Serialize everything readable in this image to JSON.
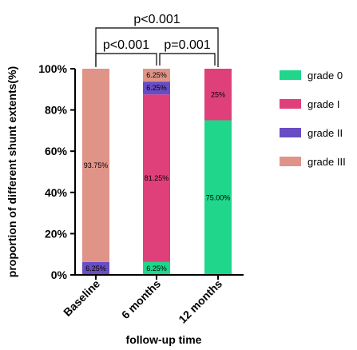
{
  "chart_data": {
    "type": "bar",
    "stacked": true,
    "percent_axis": true,
    "title": "",
    "xlabel": "follow-up time",
    "ylabel": "proportion  of different shunt extents(%)",
    "ylim": [
      0,
      100
    ],
    "yticks": [
      "0%",
      "20%",
      "40%",
      "60%",
      "80%",
      "100%"
    ],
    "grid": false,
    "legend_position": "right",
    "categories": [
      "Baseline",
      "6 months",
      "12 months"
    ],
    "series": [
      {
        "name": "grade 0",
        "color": "#1fd68a",
        "values": [
          0,
          6.25,
          75.0
        ],
        "labels": [
          "",
          "6.25%",
          "75.00%"
        ]
      },
      {
        "name": "grade I",
        "color": "#e0407a",
        "values": [
          0,
          81.25,
          25.0
        ],
        "labels": [
          "",
          "81.25%",
          "25%"
        ]
      },
      {
        "name": "grade II",
        "color": "#6a4cc4",
        "values": [
          6.25,
          6.25,
          0
        ],
        "labels": [
          "6.25%",
          "6.25%",
          ""
        ]
      },
      {
        "name": "grade III",
        "color": "#e09488",
        "values": [
          93.75,
          6.25,
          0
        ],
        "labels": [
          "93.75%",
          "6.25%",
          ""
        ]
      }
    ],
    "annotations": [
      {
        "from": 0,
        "to": 1,
        "text": "p<0.001",
        "level": 1
      },
      {
        "from": 1,
        "to": 2,
        "text": "p=0.001",
        "level": 1
      },
      {
        "from": 0,
        "to": 2,
        "text": "p<0.001",
        "level": 2
      }
    ]
  }
}
